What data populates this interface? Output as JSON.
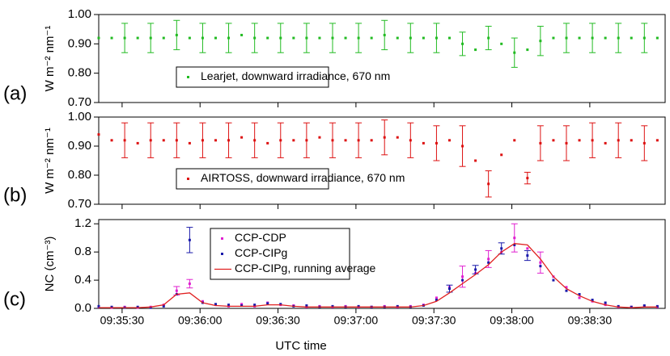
{
  "chart_data": [
    {
      "type": "scatter",
      "panel_label": "(a)",
      "ylabel": "W m⁻² nm⁻¹",
      "xlim": [
        34521,
        34739
      ],
      "ylim": [
        0.7,
        1.0
      ],
      "yticks": [
        {
          "value": 0.7,
          "label": "0.70"
        },
        {
          "value": 0.8,
          "label": "0.80"
        },
        {
          "value": 0.9,
          "label": "0.90"
        },
        {
          "value": 1.0,
          "label": "1.00"
        }
      ],
      "legend": "lower-left",
      "x": [
        34521,
        34526,
        34531,
        34536,
        34541,
        34546,
        34551,
        34556,
        34561,
        34566,
        34571,
        34576,
        34581,
        34586,
        34591,
        34596,
        34601,
        34606,
        34611,
        34616,
        34621,
        34626,
        34631,
        34636,
        34641,
        34646,
        34651,
        34656,
        34661,
        34666,
        34671,
        34676,
        34681,
        34686,
        34691,
        34696,
        34701,
        34706,
        34711,
        34716,
        34721,
        34726,
        34731,
        34736
      ],
      "series": [
        {
          "name": "Learjet, downward irradiance, 670 nm",
          "color": "#22bb22",
          "marker": "square",
          "values": [
            0.92,
            0.92,
            0.92,
            0.92,
            0.92,
            0.92,
            0.93,
            0.92,
            0.92,
            0.92,
            0.92,
            0.93,
            0.92,
            0.92,
            0.92,
            0.92,
            0.92,
            0.92,
            0.92,
            0.92,
            0.92,
            0.92,
            0.93,
            0.92,
            0.92,
            0.92,
            0.92,
            0.92,
            0.9,
            0.88,
            0.92,
            0.9,
            0.87,
            0.88,
            0.91,
            0.92,
            0.92,
            0.92,
            0.92,
            0.92,
            0.92,
            0.92,
            0.92,
            0.92
          ],
          "errors": [
            null,
            null,
            0.05,
            null,
            0.05,
            null,
            0.05,
            null,
            0.05,
            null,
            0.05,
            null,
            0.05,
            null,
            0.05,
            null,
            0.05,
            null,
            0.05,
            null,
            0.05,
            null,
            0.05,
            null,
            0.05,
            null,
            0.05,
            null,
            0.04,
            null,
            0.04,
            null,
            0.05,
            null,
            0.05,
            null,
            0.05,
            null,
            0.05,
            null,
            0.05,
            null,
            0.05,
            null
          ]
        }
      ]
    },
    {
      "type": "scatter",
      "panel_label": "(b)",
      "ylabel": "W m⁻² nm⁻¹",
      "xlim": [
        34521,
        34739
      ],
      "ylim": [
        0.7,
        1.0
      ],
      "yticks": [
        {
          "value": 0.7,
          "label": "0.70"
        },
        {
          "value": 0.8,
          "label": "0.80"
        },
        {
          "value": 0.9,
          "label": "0.90"
        },
        {
          "value": 1.0,
          "label": "1.00"
        }
      ],
      "legend": "lower-left",
      "x": [
        34521,
        34526,
        34531,
        34536,
        34541,
        34546,
        34551,
        34556,
        34561,
        34566,
        34571,
        34576,
        34581,
        34586,
        34591,
        34596,
        34601,
        34606,
        34611,
        34616,
        34621,
        34626,
        34631,
        34636,
        34641,
        34646,
        34651,
        34656,
        34661,
        34666,
        34671,
        34676,
        34681,
        34686,
        34691,
        34696,
        34701,
        34706,
        34711,
        34716,
        34721,
        34726,
        34731,
        34736
      ],
      "series": [
        {
          "name": "AIRTOSS, downward irradiance, 670 nm",
          "color": "#dd1111",
          "marker": "square",
          "values": [
            0.94,
            0.92,
            0.92,
            0.91,
            0.92,
            0.92,
            0.92,
            0.91,
            0.92,
            0.92,
            0.92,
            0.93,
            0.92,
            0.91,
            0.92,
            0.92,
            0.92,
            0.93,
            0.92,
            0.92,
            0.92,
            0.92,
            0.93,
            0.93,
            0.92,
            0.91,
            0.91,
            0.92,
            0.9,
            0.85,
            0.77,
            0.87,
            0.92,
            0.79,
            0.91,
            0.92,
            0.91,
            0.92,
            0.92,
            0.91,
            0.92,
            0.92,
            0.91,
            0.92
          ],
          "errors": [
            null,
            null,
            0.06,
            null,
            0.06,
            null,
            0.06,
            null,
            0.06,
            null,
            0.06,
            null,
            0.06,
            null,
            0.06,
            null,
            0.06,
            null,
            0.06,
            null,
            0.06,
            null,
            0.06,
            null,
            0.06,
            null,
            0.06,
            null,
            0.07,
            null,
            0.045,
            null,
            null,
            0.02,
            0.06,
            null,
            0.06,
            null,
            0.06,
            null,
            0.06,
            null,
            0.06,
            null
          ]
        }
      ]
    },
    {
      "type": "scatter",
      "panel_label": "(c)",
      "ylabel": "NC (cm⁻³)",
      "xlabel": "UTC time",
      "xlim": [
        34521,
        34739
      ],
      "ylim": [
        0,
        1.26
      ],
      "yticks": [
        {
          "value": 0,
          "label": "0.0"
        },
        {
          "value": 0.4,
          "label": "0.4"
        },
        {
          "value": 0.8,
          "label": "0.8"
        },
        {
          "value": 1.2,
          "label": "1.2"
        }
      ],
      "xticks": [
        {
          "value": 34530,
          "label": "09:35:30"
        },
        {
          "value": 34560,
          "label": "09:36:00"
        },
        {
          "value": 34590,
          "label": "09:36:30"
        },
        {
          "value": 34620,
          "label": "09:37:00"
        },
        {
          "value": 34650,
          "label": "09:37:30"
        },
        {
          "value": 34680,
          "label": "09:38:00"
        },
        {
          "value": 34710,
          "label": "09:38:30"
        }
      ],
      "legend": "upper-left",
      "x": [
        34521,
        34526,
        34531,
        34536,
        34541,
        34546,
        34551,
        34556,
        34561,
        34566,
        34571,
        34576,
        34581,
        34586,
        34591,
        34596,
        34601,
        34606,
        34611,
        34616,
        34621,
        34626,
        34631,
        34636,
        34641,
        34646,
        34651,
        34656,
        34661,
        34666,
        34671,
        34676,
        34681,
        34686,
        34691,
        34696,
        34701,
        34706,
        34711,
        34716,
        34721,
        34726,
        34731,
        34736
      ],
      "series": [
        {
          "name": "CCP-CDP",
          "color": "#e020d0",
          "marker": "square",
          "values": [
            0.02,
            0.01,
            0.02,
            0.01,
            0.02,
            0.05,
            0.25,
            0.35,
            0.1,
            0.05,
            0.03,
            0.06,
            0.03,
            0.08,
            0.05,
            0.04,
            0.02,
            0.03,
            0.02,
            0.03,
            0.02,
            0.02,
            0.03,
            0.02,
            0.03,
            0.05,
            0.15,
            0.3,
            0.45,
            0.5,
            0.7,
            0.8,
            1.0,
            0.85,
            0.65,
            0.45,
            0.3,
            0.15,
            0.1,
            0.05,
            0.02,
            0.02,
            0.03,
            0.02
          ],
          "errors": [
            null,
            null,
            null,
            null,
            null,
            null,
            0.06,
            0.06,
            null,
            null,
            null,
            null,
            null,
            null,
            null,
            null,
            null,
            null,
            null,
            null,
            null,
            null,
            null,
            null,
            null,
            null,
            null,
            null,
            0.15,
            null,
            0.12,
            null,
            0.2,
            null,
            0.15,
            null,
            null,
            null,
            null,
            null,
            null,
            null,
            null,
            null
          ]
        },
        {
          "name": "CCP-CIPg",
          "color": "#1a1aaa",
          "marker": "square",
          "values": [
            0.03,
            0.02,
            0.01,
            0.02,
            0.01,
            0.03,
            0.2,
            0.97,
            0.08,
            0.06,
            0.05,
            0.04,
            0.05,
            0.07,
            0.06,
            0.03,
            0.04,
            0.02,
            0.03,
            0.02,
            0.03,
            0.02,
            0.02,
            0.03,
            0.02,
            0.04,
            0.12,
            0.28,
            0.4,
            0.55,
            0.65,
            0.85,
            0.9,
            0.75,
            0.6,
            0.4,
            0.25,
            0.2,
            0.12,
            0.08,
            0.03,
            0.02,
            0.04,
            0.03
          ],
          "errors": [
            null,
            null,
            null,
            null,
            null,
            null,
            null,
            0.18,
            null,
            null,
            null,
            null,
            null,
            null,
            null,
            null,
            null,
            null,
            null,
            null,
            null,
            null,
            null,
            null,
            null,
            null,
            null,
            0.05,
            null,
            0.06,
            null,
            0.08,
            null,
            0.07,
            null,
            null,
            null,
            null,
            null,
            null,
            null,
            null,
            null,
            null
          ]
        },
        {
          "name": "CCP-CIPg, running average",
          "color": "#e02020",
          "marker": "line",
          "values": [
            0.01,
            0.01,
            0.01,
            0.01,
            0.02,
            0.05,
            0.2,
            0.22,
            0.08,
            0.04,
            0.03,
            0.03,
            0.03,
            0.05,
            0.05,
            0.03,
            0.02,
            0.02,
            0.02,
            0.02,
            0.02,
            0.02,
            0.02,
            0.02,
            0.02,
            0.04,
            0.1,
            0.22,
            0.35,
            0.48,
            0.62,
            0.8,
            0.92,
            0.9,
            0.7,
            0.45,
            0.28,
            0.18,
            0.1,
            0.05,
            0.02,
            0.01,
            0.02,
            0.02
          ]
        }
      ]
    }
  ]
}
